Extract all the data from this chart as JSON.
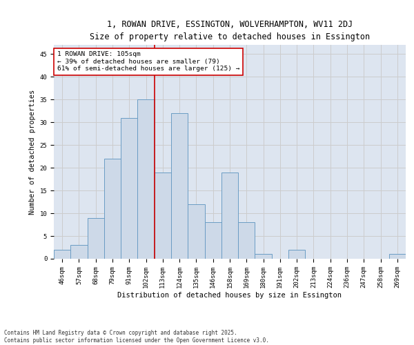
{
  "title_line1": "1, ROWAN DRIVE, ESSINGTON, WOLVERHAMPTON, WV11 2DJ",
  "title_line2": "Size of property relative to detached houses in Essington",
  "xlabel": "Distribution of detached houses by size in Essington",
  "ylabel": "Number of detached properties",
  "categories": [
    "46sqm",
    "57sqm",
    "68sqm",
    "79sqm",
    "91sqm",
    "102sqm",
    "113sqm",
    "124sqm",
    "135sqm",
    "146sqm",
    "158sqm",
    "169sqm",
    "180sqm",
    "191sqm",
    "202sqm",
    "213sqm",
    "224sqm",
    "236sqm",
    "247sqm",
    "258sqm",
    "269sqm"
  ],
  "values": [
    2,
    3,
    9,
    22,
    31,
    35,
    19,
    32,
    12,
    8,
    19,
    8,
    1,
    0,
    2,
    0,
    0,
    0,
    0,
    0,
    1
  ],
  "bar_color": "#cdd9e8",
  "bar_edge_color": "#6a9cc4",
  "vline_x": 5.5,
  "vline_color": "#cc0000",
  "annotation_text": "1 ROWAN DRIVE: 105sqm\n← 39% of detached houses are smaller (79)\n61% of semi-detached houses are larger (125) →",
  "annotation_box_color": "#cc0000",
  "annotation_fill": "#ffffff",
  "ylim": [
    0,
    47
  ],
  "yticks": [
    0,
    5,
    10,
    15,
    20,
    25,
    30,
    35,
    40,
    45
  ],
  "grid_color": "#cccccc",
  "bg_color": "#dde5f0",
  "footnote": "Contains HM Land Registry data © Crown copyright and database right 2025.\nContains public sector information licensed under the Open Government Licence v3.0.",
  "title_fontsize": 8.5,
  "subtitle_fontsize": 7.8,
  "tick_fontsize": 6.5,
  "label_fontsize": 7.5,
  "annot_fontsize": 6.8,
  "footnote_fontsize": 5.5
}
